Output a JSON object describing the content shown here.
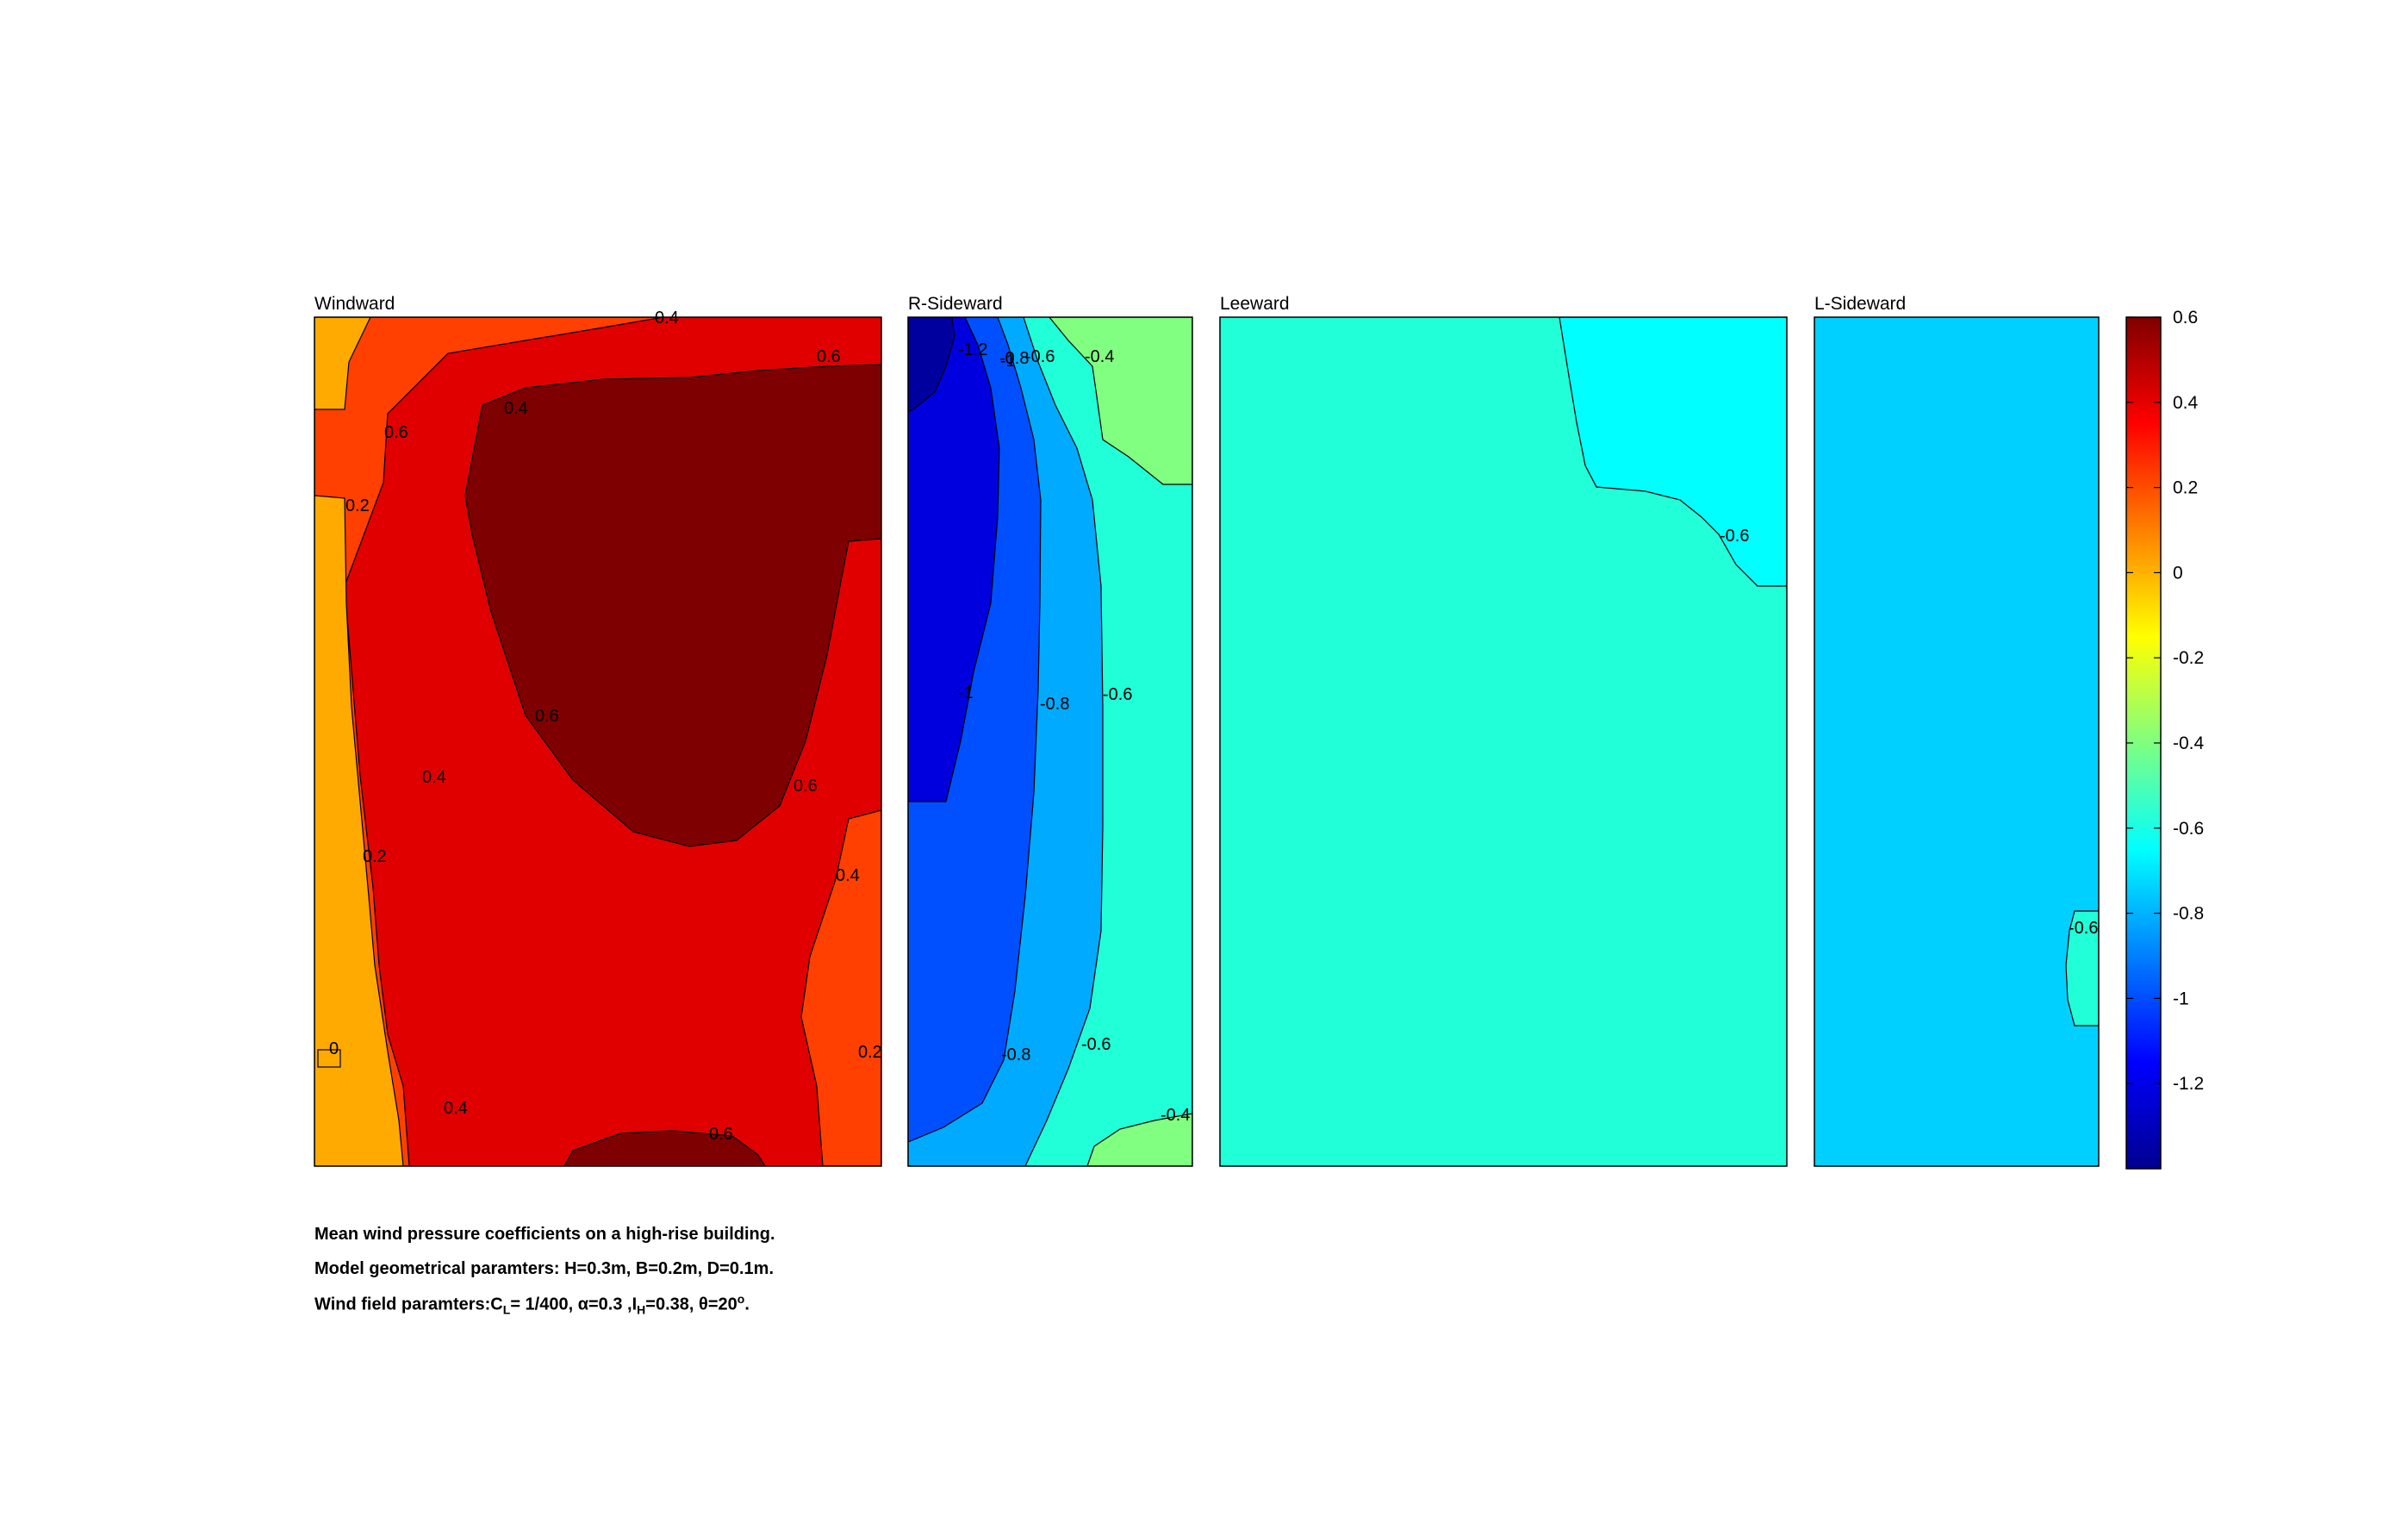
{
  "chart_data": {
    "type": "contour",
    "panels": [
      {
        "title": "Windward",
        "fill": "#e00000",
        "regions": [
          {
            "level": 0.1,
            "color": "#ffaa00"
          },
          {
            "level": 0.2,
            "color": "#ff4000"
          },
          {
            "level": 0.4,
            "color": "#e00000"
          },
          {
            "level": 0.6,
            "color": "#7f0000"
          }
        ],
        "contour_labels": [
          "0.4",
          "0.6",
          "0.4",
          "0.6",
          "0.2",
          "0.6",
          "0.4",
          "0.2",
          "0.6",
          "0.4",
          "0",
          "0.2",
          "0.4",
          "0.6"
        ]
      },
      {
        "title": "R-Sideward",
        "fill": "#20ffd8",
        "regions": [
          {
            "level": -1.3,
            "color": "#00009f"
          },
          {
            "level": -1.0,
            "color": "#0000df"
          },
          {
            "level": -0.9,
            "color": "#0050ff"
          },
          {
            "level": -0.7,
            "color": "#00aaff"
          },
          {
            "level": -0.5,
            "color": "#20ffd8"
          },
          {
            "level": -0.4,
            "color": "#80ff80"
          }
        ],
        "contour_labels": [
          "-1.2",
          "-1",
          "-0.8",
          "-0.6",
          "-0.4",
          "-1",
          "-0.8",
          "-0.6",
          "-0.8",
          "-0.6",
          "-0.4"
        ]
      },
      {
        "title": "Leeward",
        "fill": "#20ffd8",
        "regions": [
          {
            "level": -0.6,
            "color": "#00ffff"
          }
        ],
        "contour_labels": [
          "-0.6"
        ]
      },
      {
        "title": "L-Sideward",
        "fill": "#00d0ff",
        "regions": [
          {
            "level": -0.6,
            "color": "#20ffd8"
          }
        ],
        "contour_labels": [
          "-0.6"
        ]
      }
    ],
    "colorbar": {
      "range": [
        -1.4,
        0.6
      ],
      "ticks": [
        "0.6",
        "0.4",
        "0.2",
        "0",
        "-0.2",
        "-0.4",
        "-0.6",
        "-0.8",
        "-1",
        "-1.2"
      ],
      "colormap": "jet"
    }
  },
  "caption": {
    "line1": "Mean wind pressure coefficients on a high-rise building.",
    "line2": "Model geometrical paramters: H=0.3m, B=0.2m, D=0.1m.",
    "line3_prefix": "Wind field paramters:C",
    "line3_sub1": "L",
    "line3_mid": "= 1/400, α=0.3 ,I",
    "line3_sub2": "H",
    "line3_mid2": "=0.38, θ=20",
    "line3_sup": "o",
    "line3_end": "."
  }
}
